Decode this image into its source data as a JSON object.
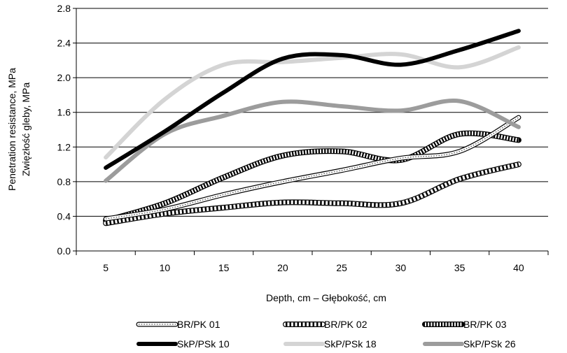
{
  "chart_data": {
    "type": "line",
    "title": "",
    "xlabel": "Depth, cm – Głębokość, cm",
    "ylabel": "Penetration resistance, MPa",
    "ylabel2": "Zwięzłość gleby, MPa",
    "x": [
      5,
      10,
      15,
      20,
      25,
      30,
      35,
      40
    ],
    "x_ticks": [
      "5",
      "10",
      "15",
      "20",
      "25",
      "30",
      "35",
      "40"
    ],
    "y_ticks": [
      "0.0",
      "0.4",
      "0.8",
      "1.2",
      "1.6",
      "2.0",
      "2.4",
      "2.8"
    ],
    "ylim": [
      0,
      2.8
    ],
    "grid": "horizontal",
    "legend_position": "bottom",
    "series": [
      {
        "name": "BR/PK 01",
        "style": "dotted",
        "values": [
          0.37,
          0.48,
          0.65,
          0.8,
          0.93,
          1.07,
          1.15,
          1.54
        ]
      },
      {
        "name": "BR/PK 02",
        "style": "hatched",
        "values": [
          0.32,
          0.43,
          0.5,
          0.56,
          0.55,
          0.55,
          0.83,
          1.0
        ]
      },
      {
        "name": "BR/PK 03",
        "style": "ladder",
        "values": [
          0.35,
          0.55,
          0.85,
          1.1,
          1.15,
          1.05,
          1.35,
          1.28
        ]
      },
      {
        "name": "SkP/PSk 10",
        "style": "black",
        "values": [
          0.96,
          1.38,
          1.83,
          2.22,
          2.26,
          2.15,
          2.32,
          2.54
        ]
      },
      {
        "name": "SkP/PSk 18",
        "style": "lightgray",
        "values": [
          1.08,
          1.75,
          2.15,
          2.18,
          2.23,
          2.27,
          2.12,
          2.35
        ]
      },
      {
        "name": "SkP/PSk 26",
        "style": "gray",
        "values": [
          0.81,
          1.35,
          1.56,
          1.72,
          1.67,
          1.62,
          1.73,
          1.43
        ]
      }
    ]
  }
}
